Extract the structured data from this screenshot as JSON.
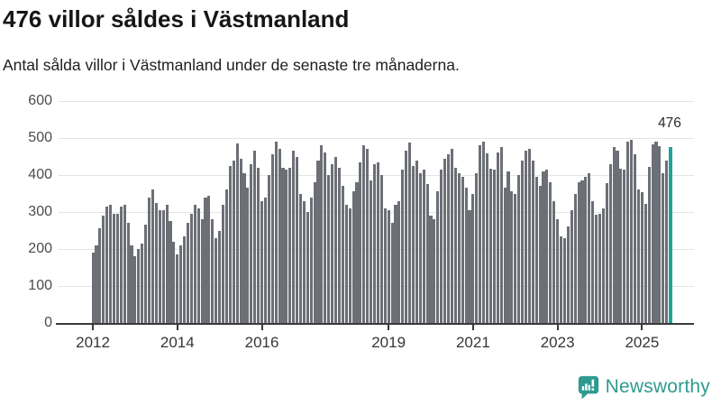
{
  "title": "476 villor såldes i Västmanland",
  "subtitle": "Antal sålda villor i Västmanland under de senaste tre månaderna.",
  "annotation": {
    "label": "476"
  },
  "logo": {
    "text": "Newsworthy"
  },
  "colors": {
    "bar": "#6c6f75",
    "highlight": "#1fa39a",
    "grid": "#e4e4e4",
    "axis": "#3a3a3a",
    "title_text": "#161616",
    "subtitle_text": "#1e1e1e",
    "tick_text": "#4c4c4c",
    "logo_teal": "#2f9a90"
  },
  "chart_data": {
    "type": "bar",
    "title": "476 villor såldes i Västmanland",
    "subtitle": "Antal sålda villor i Västmanland under de senaste tre månaderna.",
    "xlabel": "",
    "ylabel": "",
    "unit": "sålda villor (rullande 3 månader)",
    "frequency": "monthly",
    "x_start": "2012-01",
    "x_end": "2025-09",
    "ylim": [
      0,
      600
    ],
    "yticks": [
      0,
      100,
      200,
      300,
      400,
      500,
      600
    ],
    "xtick_labels": [
      "2012",
      "2014",
      "2016",
      "2019",
      "2021",
      "2023",
      "2025"
    ],
    "xtick_month_index": [
      0,
      24,
      48,
      84,
      108,
      132,
      156
    ],
    "grid": "horizontal",
    "legend": "none",
    "highlight_last": true,
    "last_value_label": "476",
    "values": [
      190,
      210,
      255,
      290,
      315,
      320,
      295,
      295,
      315,
      320,
      270,
      210,
      180,
      200,
      215,
      265,
      340,
      360,
      325,
      305,
      305,
      320,
      275,
      220,
      185,
      210,
      235,
      270,
      295,
      320,
      310,
      280,
      340,
      345,
      280,
      230,
      250,
      320,
      360,
      425,
      440,
      485,
      445,
      405,
      365,
      430,
      465,
      420,
      330,
      340,
      400,
      455,
      490,
      470,
      420,
      415,
      420,
      465,
      450,
      350,
      330,
      300,
      340,
      380,
      440,
      480,
      460,
      400,
      430,
      450,
      420,
      370,
      320,
      310,
      355,
      380,
      435,
      480,
      470,
      385,
      430,
      435,
      400,
      310,
      305,
      270,
      320,
      330,
      415,
      467,
      487,
      425,
      440,
      405,
      415,
      375,
      290,
      280,
      355,
      415,
      445,
      455,
      470,
      420,
      405,
      395,
      365,
      305,
      350,
      405,
      480,
      490,
      458,
      418,
      415,
      462,
      475,
      365,
      410,
      355,
      350,
      400,
      440,
      465,
      470,
      440,
      395,
      370,
      410,
      415,
      380,
      330,
      280,
      235,
      230,
      260,
      305,
      350,
      380,
      385,
      395,
      405,
      330,
      292,
      296,
      310,
      377,
      430,
      475,
      467,
      418,
      414,
      490,
      495,
      455,
      360,
      353,
      322,
      422,
      483,
      491,
      479,
      406,
      438,
      476
    ]
  }
}
